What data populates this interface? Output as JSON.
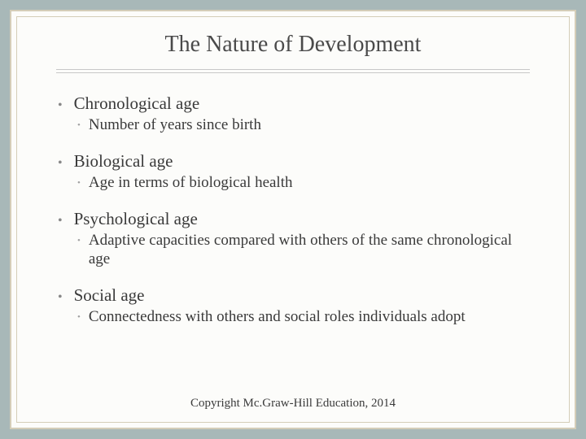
{
  "title": "The Nature of Development",
  "colors": {
    "page_background": "#a8b8b8",
    "slide_background": "#fcfcfa",
    "frame_border": "#d4cdb8",
    "text_color": "#3a3a3a",
    "title_color": "#4a4a4a",
    "main_bullet_color": "#888888",
    "sub_bullet_color": "#a0a0a0",
    "underline_color": "#c8c8c8"
  },
  "typography": {
    "font_family": "Georgia, Times New Roman, serif",
    "title_fontsize": 28,
    "main_item_fontsize": 21,
    "sub_item_fontsize": 19,
    "footer_fontsize": 15
  },
  "items": [
    {
      "label": "Chronological age",
      "sub": "Number of years since birth"
    },
    {
      "label": "Biological age",
      "sub": "Age in terms of biological health"
    },
    {
      "label": "Psychological age",
      "sub": "Adaptive capacities compared with others of the same chronological age"
    },
    {
      "label": "Social age",
      "sub": "Connectedness with others and social roles individuals adopt"
    }
  ],
  "footer": "Copyright Mc.Graw-Hill Education, 2014"
}
